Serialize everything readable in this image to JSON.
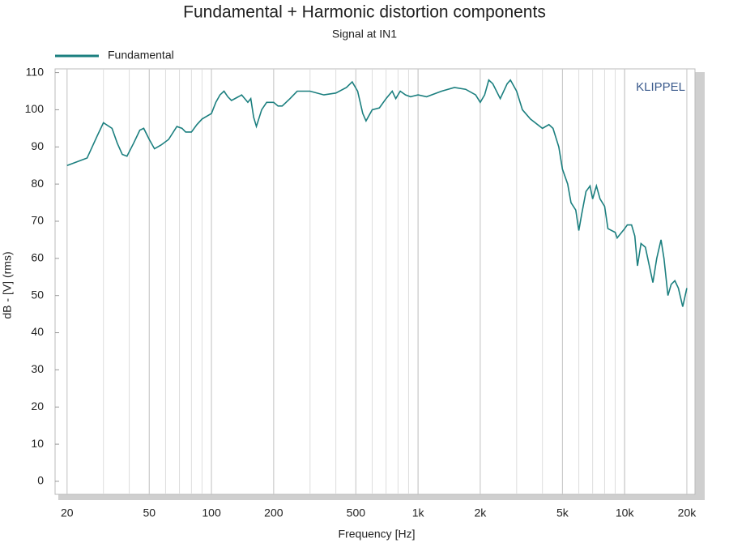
{
  "chart_data": {
    "type": "line",
    "title": "Fundamental + Harmonic distortion components",
    "subtitle": "Signal at IN1",
    "x_label": "Frequency [Hz]",
    "y_label": "dB - [V] (rms)",
    "annotation": "KLIPPEL",
    "x_scale": "log",
    "grid": true,
    "legend": "top-left",
    "xlim": [
      17.5,
      21900
    ],
    "ylim": [
      -3.5,
      111
    ],
    "xticks": [
      20,
      50,
      100,
      200,
      500,
      {
        "value": 1000,
        "label": "1k"
      },
      {
        "value": 2000,
        "label": "2k"
      },
      {
        "value": 5000,
        "label": "5k"
      },
      {
        "value": 10000,
        "label": "10k"
      },
      {
        "value": 20000,
        "label": "20k"
      }
    ],
    "yticks": [
      0,
      10,
      20,
      30,
      40,
      50,
      60,
      70,
      80,
      90,
      100,
      110
    ],
    "x": [
      20,
      25,
      28,
      30,
      33,
      35,
      37,
      39,
      42,
      45,
      47,
      50,
      53,
      57,
      62,
      68,
      72,
      75,
      80,
      85,
      90,
      100,
      105,
      110,
      115,
      120,
      125,
      135,
      140,
      150,
      155,
      160,
      165,
      175,
      185,
      200,
      210,
      220,
      240,
      260,
      300,
      350,
      400,
      450,
      480,
      510,
      540,
      560,
      600,
      650,
      700,
      750,
      780,
      820,
      870,
      920,
      1000,
      1100,
      1300,
      1500,
      1700,
      1900,
      2000,
      2100,
      2200,
      2300,
      2500,
      2700,
      2800,
      3000,
      3200,
      3500,
      4000,
      4300,
      4500,
      4800,
      5000,
      5300,
      5500,
      5800,
      6000,
      6200,
      6500,
      6800,
      7000,
      7300,
      7600,
      8000,
      8300,
      9000,
      9200,
      10000,
      10300,
      10800,
      11200,
      11540,
      12000,
      12600,
      13700,
      14300,
      15000,
      15500,
      16200,
      16800,
      17500,
      18200,
      19100,
      20000
    ],
    "series": [
      {
        "name": "Fundamental",
        "color": "#1b7f7f",
        "values": [
          85,
          87,
          93,
          96.5,
          95,
          91,
          88,
          87.5,
          91,
          94.5,
          95,
          92,
          89.5,
          90.5,
          92,
          95.5,
          95,
          94,
          94,
          96,
          97.5,
          99,
          102,
          104,
          105,
          103.5,
          102.5,
          103.5,
          104,
          102,
          103,
          98,
          95.5,
          100,
          102,
          102,
          101,
          101,
          103,
          105,
          105,
          104,
          104.5,
          106,
          107.5,
          105,
          99,
          97,
          100,
          100.5,
          103,
          105,
          103,
          105,
          104,
          103.5,
          104,
          103.5,
          105,
          106,
          105.5,
          104,
          102,
          104,
          108,
          107,
          103,
          107,
          108,
          105,
          100,
          97.5,
          95,
          96,
          95,
          90,
          84,
          80,
          75,
          73,
          67.5,
          72,
          78,
          79.5,
          76,
          79.5,
          76,
          74,
          68,
          67,
          65.5,
          68,
          69,
          69,
          66,
          58,
          64,
          63,
          53.5,
          60,
          65,
          60,
          50,
          53,
          54,
          52,
          47,
          52
        ]
      }
    ]
  }
}
